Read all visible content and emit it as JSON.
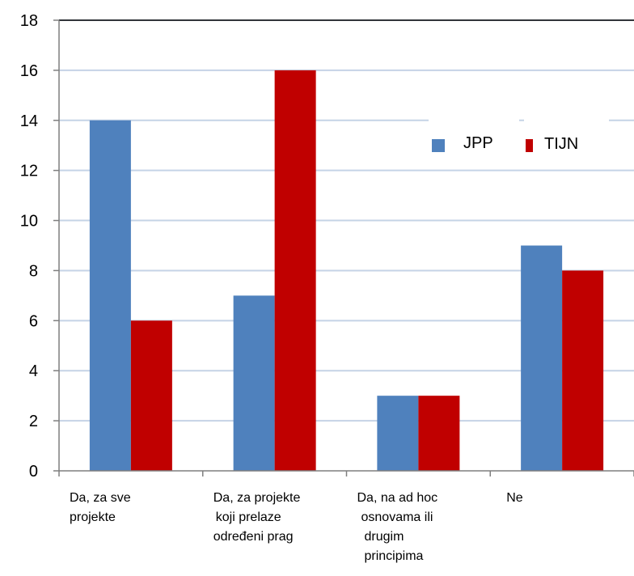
{
  "chart_data": {
    "type": "bar",
    "categories": [
      [
        "Da, za sve",
        "projekte"
      ],
      [
        "Da, za projekte",
        "koji prelaze",
        "određeni prag"
      ],
      [
        "Da, na ad hoc",
        "osnovama ili",
        "drugim",
        "principima"
      ],
      [
        "Ne"
      ]
    ],
    "series": [
      {
        "name": "JPP",
        "values": [
          14,
          7,
          3,
          9
        ]
      },
      {
        "name": "TIJN",
        "values": [
          6,
          16,
          3,
          8
        ]
      }
    ],
    "ylim": [
      0,
      18
    ],
    "yticks": [
      0,
      2,
      4,
      6,
      8,
      10,
      12,
      14,
      16,
      18
    ],
    "grid": true,
    "legend_position": "top-right",
    "colors": {
      "JPP": "#4f81bd",
      "TIJN": "#c00000",
      "grid": "#c5d3e6",
      "axis": "#7f7f7f",
      "frame": "#000000"
    }
  }
}
